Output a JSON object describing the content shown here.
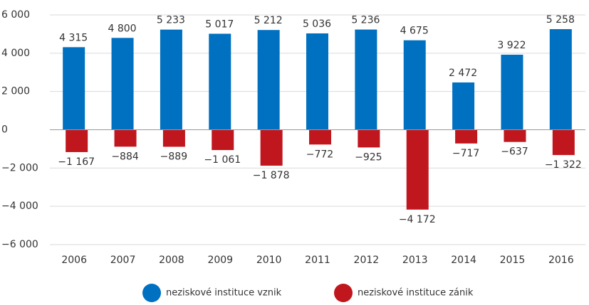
{
  "chart_data": {
    "type": "bar",
    "categories": [
      "2006",
      "2007",
      "2008",
      "2009",
      "2010",
      "2011",
      "2012",
      "2013",
      "2014",
      "2015",
      "2016"
    ],
    "series": [
      {
        "name": "neziskové instituce vznik",
        "color": "#0070c0",
        "values": [
          4315,
          4800,
          5233,
          5017,
          5212,
          5036,
          5236,
          4675,
          2472,
          3922,
          5258
        ],
        "value_labels": [
          "4 315",
          "4 800",
          "5 233",
          "5 017",
          "5 212",
          "5 036",
          "5 236",
          "4 675",
          "2 472",
          "3 922",
          "5 258"
        ]
      },
      {
        "name": "neziskové instituce zánik",
        "color": "#c0161e",
        "values": [
          -1167,
          -884,
          -889,
          -1061,
          -1878,
          -772,
          -925,
          -4172,
          -717,
          -637,
          -1322
        ],
        "value_labels": [
          "−1 167",
          "−884",
          "−889",
          "−1 061",
          "−1 878",
          "−772",
          "−925",
          "−4 172",
          "−717",
          "−637",
          "−1 322"
        ]
      }
    ],
    "ylim": [
      -6000,
      6000
    ],
    "yticks": [
      {
        "value": -6000,
        "label": "−6 000"
      },
      {
        "value": -4000,
        "label": "−4 000"
      },
      {
        "value": -2000,
        "label": "−2 000"
      },
      0,
      {
        "value": 2000,
        "label": "2 000"
      },
      {
        "value": 4000,
        "label": "4 000"
      },
      {
        "value": 6000,
        "label": "6 000"
      }
    ],
    "grid": true
  }
}
